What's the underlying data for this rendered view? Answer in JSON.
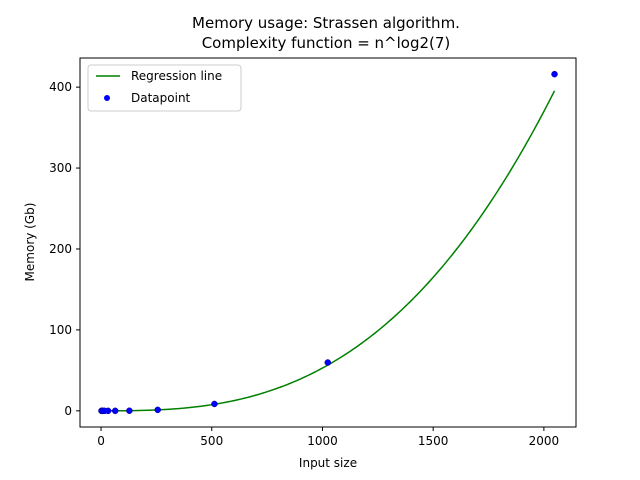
{
  "chart_data": {
    "type": "scatter",
    "title": "Memory usage: Strassen algorithm.",
    "subtitle": "Complexity function = n^log2(7)",
    "xlabel": "Input size",
    "ylabel": "Memory (Gb)",
    "xlim": [
      -95,
      2145
    ],
    "ylim": [
      -20,
      436
    ],
    "xticks": [
      0,
      500,
      1000,
      1500,
      2000
    ],
    "yticks": [
      0,
      100,
      200,
      300,
      400
    ],
    "grid": false,
    "legend_position": "top-left",
    "series": [
      {
        "name": "Regression line",
        "kind": "line",
        "color": "#008000",
        "function": "a * n^log2(7)",
        "coefficient": 2e-07
      },
      {
        "name": "Datapoint",
        "kind": "scatter",
        "color": "#0000ff",
        "x": [
          2,
          4,
          8,
          16,
          32,
          64,
          128,
          256,
          512,
          1024,
          2048
        ],
        "y": [
          0.0,
          0.0,
          0.0,
          0.0,
          0.0,
          0.0,
          0.1,
          1.2,
          8.5,
          59.7,
          416.0
        ]
      }
    ]
  }
}
